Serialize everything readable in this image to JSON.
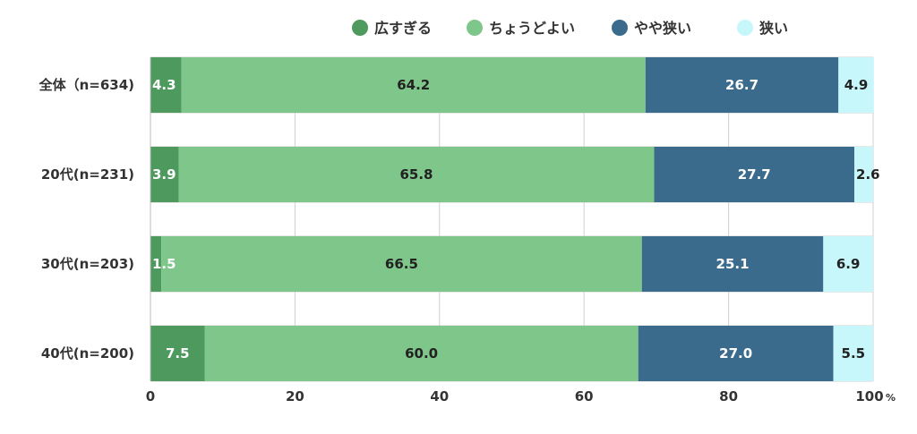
{
  "chart_data": {
    "type": "bar",
    "orientation": "horizontal",
    "stacked": true,
    "categories": [
      "全体（n=634)",
      "20代(n=231)",
      "30代(n=203)",
      "40代(n=200)"
    ],
    "series": [
      {
        "name": "広すぎる",
        "color": "#4e9a5e",
        "label_color": "#ffffff",
        "values": [
          4.3,
          3.9,
          1.5,
          7.5
        ]
      },
      {
        "name": "ちょうどよい",
        "color": "#7fc68a",
        "label_color": "#222222",
        "values": [
          64.2,
          65.8,
          66.5,
          60.0
        ]
      },
      {
        "name": "やや狭い",
        "color": "#3b6b8c",
        "label_color": "#ffffff",
        "values": [
          26.7,
          27.7,
          25.1,
          27.0
        ]
      },
      {
        "name": "狭い",
        "color": "#c8f7fb",
        "label_color": "#222222",
        "values": [
          4.9,
          2.6,
          6.9,
          5.5
        ]
      }
    ],
    "xlim": [
      0,
      100
    ],
    "xticks": [
      "0",
      "20",
      "40",
      "60",
      "80",
      "100"
    ],
    "x_unit": "%",
    "grid": true,
    "legend_position": "top"
  }
}
